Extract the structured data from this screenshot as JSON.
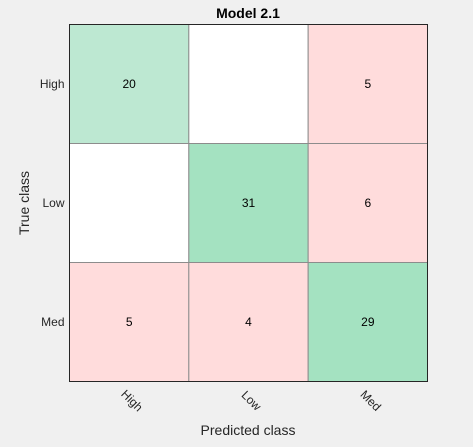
{
  "chart_data": {
    "type": "heatmap",
    "title": "Model 2.1",
    "xlabel": "Predicted class",
    "ylabel": "True class",
    "x_categories": [
      "High",
      "Low",
      "Med"
    ],
    "y_categories": [
      "High",
      "Low",
      "Med"
    ],
    "values": [
      [
        20,
        null,
        5
      ],
      [
        null,
        31,
        6
      ],
      [
        5,
        4,
        29
      ]
    ],
    "colors": {
      "correct_light": "#bde8d2",
      "correct_dark": "#a4e2c1",
      "incorrect": "#ffdcdc",
      "empty": "#ffffff",
      "grid": "#8c8c8c",
      "frame": "#262626",
      "background": "#f0f0f0"
    },
    "grid": true,
    "legend": "none"
  }
}
